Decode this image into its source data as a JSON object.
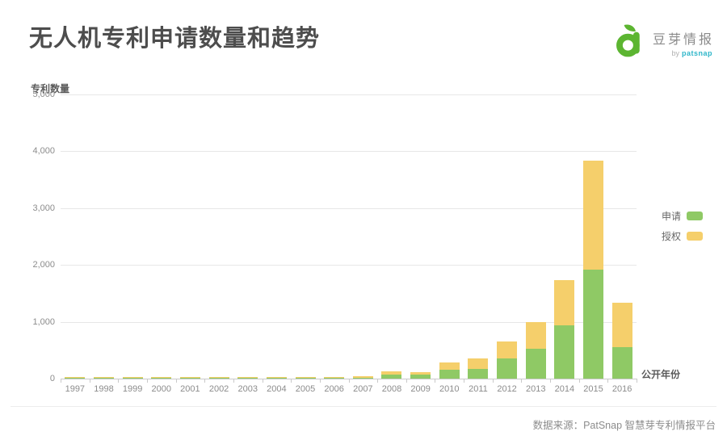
{
  "header": {
    "title": "无人机专利申请数量和趋势",
    "logo": {
      "icon": "sprout-d-icon",
      "brand": "豆芽情报",
      "byline_prefix": "by",
      "byline_brand": "patsnap",
      "icon_color": "#5cb531",
      "byline_color": "#2eb6c9"
    }
  },
  "chart_data": {
    "type": "bar",
    "stacked": true,
    "title": "无人机专利申请数量和趋势",
    "ylabel": "专利数量",
    "xlabel": "公开年份",
    "ylim": [
      0,
      5000
    ],
    "ytick_interval": 1000,
    "ytick_labels": [
      "5,000",
      "4,000",
      "3,000",
      "2,000",
      "1,000",
      "0"
    ],
    "grid": true,
    "legend_position": "right",
    "categories": [
      "1997",
      "1998",
      "1999",
      "2000",
      "2001",
      "2002",
      "2003",
      "2004",
      "2005",
      "2006",
      "2007",
      "2008",
      "2009",
      "2010",
      "2011",
      "2012",
      "2013",
      "2014",
      "2015",
      "2016"
    ],
    "series": [
      {
        "name": "申请",
        "color": "#8fc965",
        "values": [
          14,
          3,
          6,
          6,
          3,
          8,
          7,
          8,
          5,
          3,
          8,
          70,
          65,
          150,
          165,
          355,
          530,
          940,
          1920,
          550
        ]
      },
      {
        "name": "授权",
        "color": "#f5cf6b",
        "values": [
          2,
          1,
          5,
          5,
          1,
          5,
          5,
          5,
          20,
          2,
          28,
          55,
          55,
          135,
          185,
          300,
          470,
          790,
          1920,
          790
        ]
      }
    ]
  },
  "footer": {
    "source": "数据来源：PatSnap 智慧芽专利情报平台"
  }
}
